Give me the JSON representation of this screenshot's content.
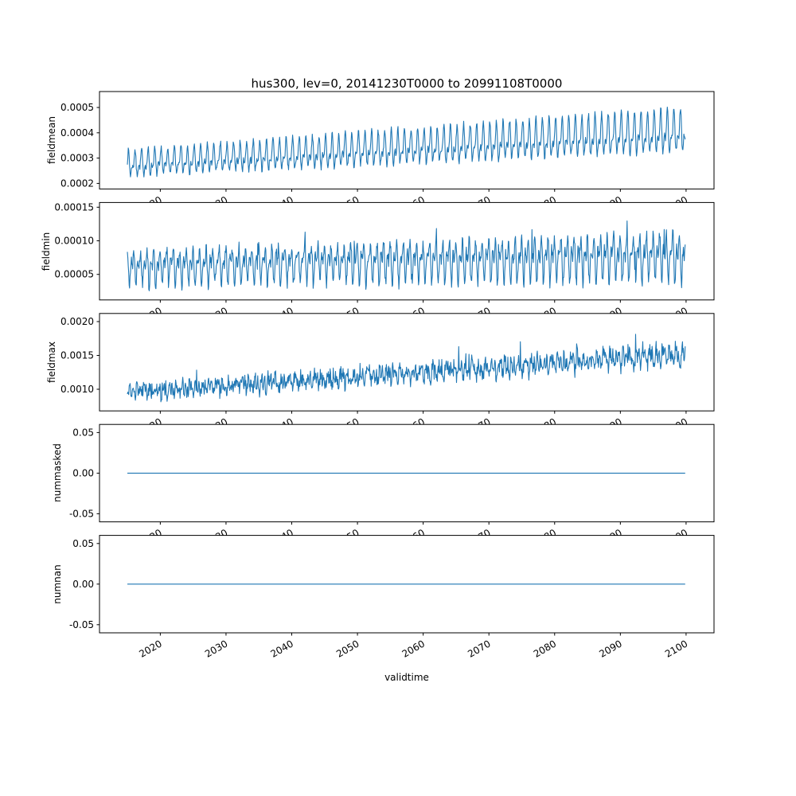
{
  "figure": {
    "title": "hus300, lev=0, 20141230T0000 to 20991108T0000",
    "xlabel": "validtime",
    "line_color": "#1f77b4",
    "background": "#ffffff",
    "xlim": [
      2010.75,
      2104.25
    ],
    "xticks": {
      "values": [
        2020,
        2030,
        2040,
        2050,
        2060,
        2070,
        2080,
        2090,
        2100
      ],
      "labels": [
        "2020",
        "2030",
        "2040",
        "2050",
        "2060",
        "2070",
        "2080",
        "2090",
        "2100"
      ]
    }
  },
  "chart_data": [
    {
      "type": "line",
      "name": "fieldmean",
      "ylabel": "fieldmean",
      "ylim": [
        0.000178,
        0.000563
      ],
      "yticks": {
        "values": [
          0.0002,
          0.0003,
          0.0004,
          0.0005
        ],
        "labels": [
          "0.0002",
          "0.0003",
          "0.0004",
          "0.0005"
        ]
      },
      "series": {
        "kind": "seasonal",
        "seed": 7,
        "n": 1250,
        "t_start": 2014.99,
        "t_end": 2099.86,
        "base_start": 0.000275,
        "base_end": 0.000405,
        "amp_start": 5.8e-05,
        "amp_end": 0.000105,
        "h1": 0.6,
        "h2": 0.4,
        "ph1": 0.15,
        "ph2": 0.45,
        "noise": 1.2e-05,
        "spike_p": 0,
        "spike_amp": 0
      }
    },
    {
      "type": "line",
      "name": "fieldmin",
      "ylabel": "fieldmin",
      "ylim": [
        1.2e-05,
        0.000157
      ],
      "yticks": {
        "values": [
          5e-05,
          0.0001,
          0.00015
        ],
        "labels": [
          "0.00005",
          "0.00010",
          "0.00015"
        ]
      },
      "series": {
        "kind": "seasonal",
        "seed": 21,
        "n": 1250,
        "t_start": 2014.99,
        "t_end": 2099.86,
        "base_start": 6.2e-05,
        "base_end": 7.8e-05,
        "amp_start": 3e-05,
        "amp_end": 4.2e-05,
        "h1": 0.55,
        "h2": 0.45,
        "ph1": 0.4,
        "ph2": 0.1,
        "noise": 9e-06,
        "spike_p": 0.012,
        "spike_amp": 5e-05
      }
    },
    {
      "type": "line",
      "name": "fieldmax",
      "ylabel": "fieldmax",
      "ylim": [
        0.00068,
        0.00212
      ],
      "yticks": {
        "values": [
          0.001,
          0.0015,
          0.002
        ],
        "labels": [
          "0.0010",
          "0.0015",
          "0.0020"
        ]
      },
      "series": {
        "kind": "seasonal",
        "seed": 33,
        "n": 1250,
        "t_start": 2014.99,
        "t_end": 2099.86,
        "base_start": 0.00095,
        "base_end": 0.00152,
        "amp_start": 8e-05,
        "amp_end": 0.00016,
        "h1": 0.5,
        "h2": 0.5,
        "ph1": 0.7,
        "ph2": 0.25,
        "noise": 0.00011,
        "spike_p": 0.02,
        "spike_amp": 0.00035
      }
    },
    {
      "type": "line",
      "name": "nummasked",
      "ylabel": "nummasked",
      "ylim": [
        -0.06,
        0.06
      ],
      "yticks": {
        "values": [
          -0.05,
          0.0,
          0.05
        ],
        "labels": [
          "-0.05",
          "0.00",
          "0.05"
        ]
      },
      "series": {
        "kind": "constant",
        "value": 0,
        "t_start": 2014.99,
        "t_end": 2099.86
      }
    },
    {
      "type": "line",
      "name": "numnan",
      "ylabel": "numnan",
      "ylim": [
        -0.06,
        0.06
      ],
      "yticks": {
        "values": [
          -0.05,
          0.0,
          0.05
        ],
        "labels": [
          "-0.05",
          "0.00",
          "0.05"
        ]
      },
      "series": {
        "kind": "constant",
        "value": 0,
        "t_start": 2014.99,
        "t_end": 2099.86
      }
    }
  ]
}
